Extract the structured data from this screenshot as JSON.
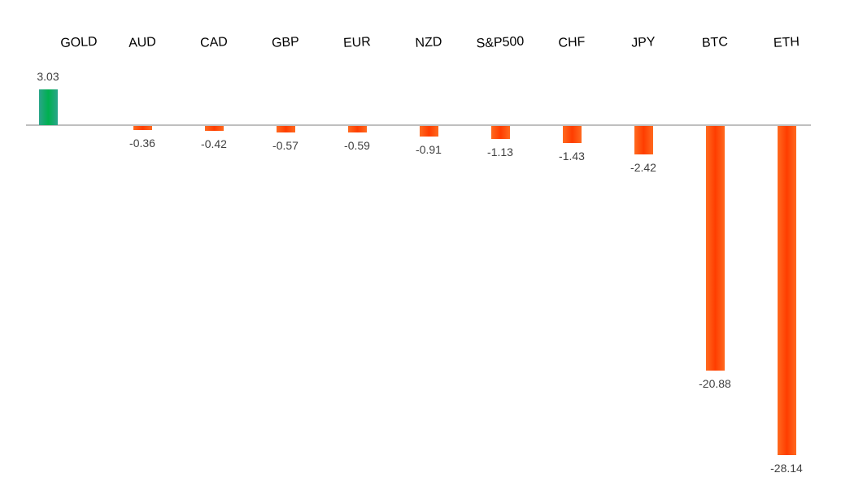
{
  "chart_data": {
    "type": "bar",
    "title": "",
    "xlabel": "",
    "ylabel": "",
    "categories": [
      "GOLD",
      "AUD",
      "CAD",
      "GBP",
      "EUR",
      "NZD",
      "S&P500",
      "CHF",
      "JPY",
      "BTC",
      "ETH"
    ],
    "values": [
      3.03,
      -0.36,
      -0.42,
      -0.57,
      -0.59,
      -0.91,
      -1.13,
      -1.43,
      -2.42,
      -20.88,
      -28.14
    ],
    "value_labels": [
      "3.03",
      "-0.36",
      "-0.42",
      "-0.57",
      "-0.59",
      "-0.91",
      "-1.13",
      "-1.43",
      "-2.42",
      "-20.88",
      "-28.14"
    ],
    "ylim": [
      -28.14,
      3.03
    ],
    "grid": false,
    "legend": null,
    "category_label_position": "top",
    "colors": {
      "positive": "#00b050",
      "negative": "#ff4500",
      "axis": "#bfbfbf"
    }
  }
}
